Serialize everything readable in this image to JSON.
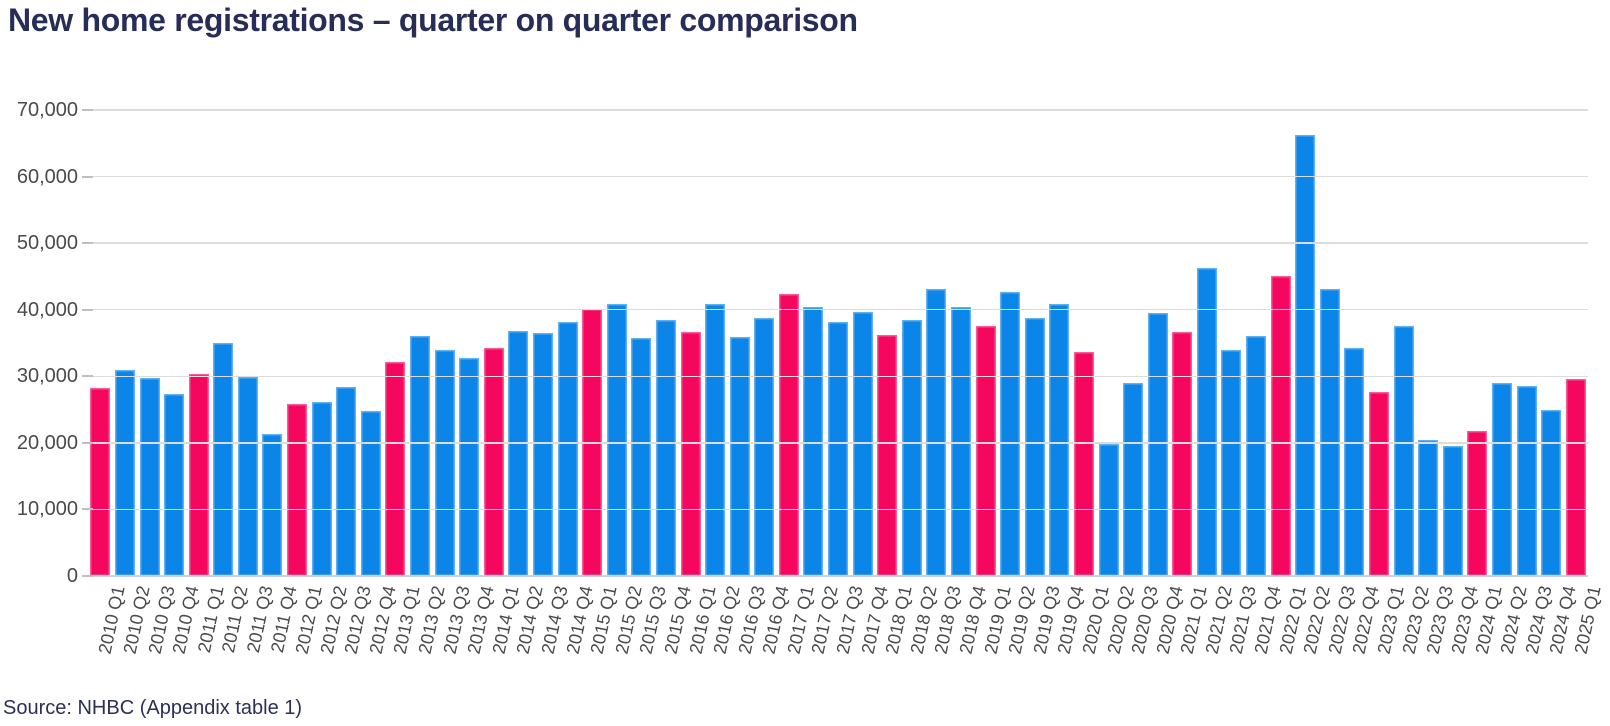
{
  "title": "New home registrations – quarter on quarter comparison",
  "source_note": "Source: NHBC (Appendix table 1)",
  "colors": {
    "q1_bar_pink": "#F5065F",
    "quarter_bar_blue": "#0B85E8",
    "title_text": "#282D58",
    "axis_text": "#4A4A4A",
    "gridline": "#DCDCDC",
    "axis_line": "#C9D2DE"
  },
  "y_axis": {
    "tick_labels": [
      "70,000",
      "60,000",
      "50,000",
      "40,000",
      "30,000",
      "20,000",
      "10,000",
      "0"
    ],
    "min": 0,
    "max": 70000,
    "step": 10000
  },
  "chart_data": {
    "type": "bar",
    "title": "New home registrations – quarter on quarter comparison",
    "xlabel": "",
    "ylabel": "",
    "ylim": [
      0,
      70000
    ],
    "grid": true,
    "legend": "none",
    "color_rule": "Q1 bars pink #F5065F, Q2–Q4 bars blue #0B85E8",
    "categories": [
      "2010 Q1",
      "2010 Q2",
      "2010 Q3",
      "2010 Q4",
      "2011 Q1",
      "2011 Q2",
      "2011 Q3",
      "2011 Q4",
      "2012 Q1",
      "2012 Q2",
      "2012 Q3",
      "2012 Q4",
      "2013 Q1",
      "2013 Q2",
      "2013 Q3",
      "2013 Q4",
      "2014 Q1",
      "2014 Q2",
      "2014 Q3",
      "2014 Q4",
      "2015 Q1",
      "2015 Q2",
      "2015 Q3",
      "2015 Q4",
      "2016 Q1",
      "2016 Q2",
      "2016 Q3",
      "2016 Q4",
      "2017 Q1",
      "2017 Q2",
      "2017 Q3",
      "2017 Q4",
      "2018 Q1",
      "2018 Q2",
      "2018 Q3",
      "2018 Q4",
      "2019 Q1",
      "2019 Q2",
      "2019 Q3",
      "2019 Q4",
      "2020 Q1",
      "2020 Q2",
      "2020 Q3",
      "2020 Q4",
      "2021 Q1",
      "2021 Q2",
      "2021 Q3",
      "2021 Q4",
      "2022 Q1",
      "2022 Q2",
      "2022 Q3",
      "2022 Q4",
      "2023 Q1",
      "2023 Q2",
      "2023 Q3",
      "2023 Q4",
      "2024 Q1",
      "2024 Q2",
      "2024 Q3",
      "2024 Q4",
      "2025 Q1"
    ],
    "values": [
      28300,
      31000,
      29700,
      27400,
      30300,
      35000,
      29900,
      21400,
      25800,
      26100,
      28400,
      24800,
      32100,
      36100,
      34000,
      32800,
      34200,
      36800,
      36500,
      38200,
      40100,
      40900,
      35800,
      38400,
      36700,
      40900,
      35900,
      38700,
      42300,
      40400,
      38100,
      39700,
      36200,
      38500,
      43100,
      40400,
      37500,
      42700,
      38700,
      40900,
      33700,
      19900,
      29000,
      39500,
      36700,
      46200,
      33900,
      36100,
      45100,
      66300,
      43100,
      34200,
      27700,
      37500,
      20500,
      19600,
      21800,
      29000,
      28600,
      25000,
      29600
    ]
  }
}
